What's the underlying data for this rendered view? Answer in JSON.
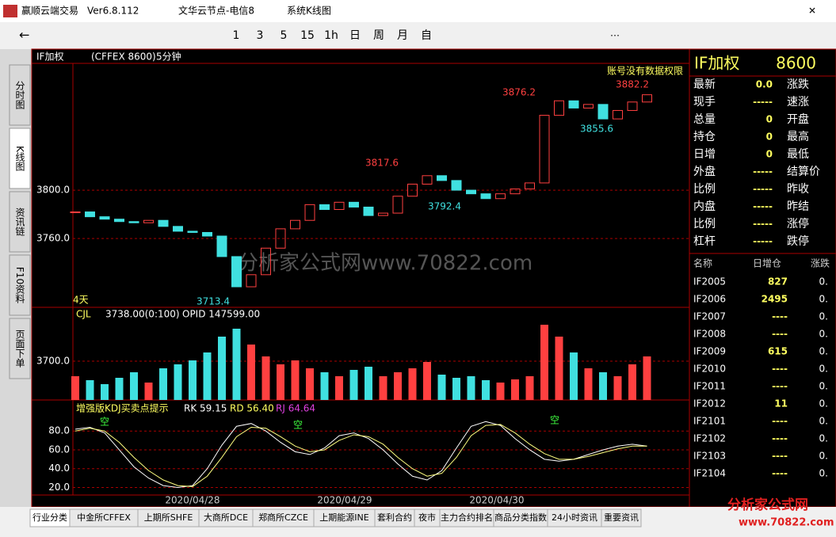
{
  "window": {
    "app": "赢顺云端交易",
    "version": "Ver6.8.112",
    "node": "文华云节点-电信8",
    "view": "系统K线图"
  },
  "toolbar": [
    "1",
    "3",
    "5",
    "15",
    "1h",
    "日",
    "周",
    "月",
    "自"
  ],
  "left_tabs": [
    "分时图",
    "K线图",
    "资讯链",
    "F10资料",
    "页面下单"
  ],
  "chart_header": {
    "symbol": "IF加权",
    "exchange": "(CFFEX 8600)",
    "period": "5分钟",
    "notice": "账号没有数据权限",
    "days": "4天"
  },
  "chart_data": {
    "type": "candlestick",
    "ylim": [
      3703,
      3905
    ],
    "yticks": [
      {
        "value": 3800,
        "label": "3800.0"
      },
      {
        "value": 3760,
        "label": "3760.0"
      }
    ],
    "watermark": "分析家公式网www.70822.com",
    "annotations": [
      "3876.2",
      "3882.2",
      "3817.6",
      "3855.6",
      "3792.4",
      "3713.4"
    ],
    "x_labels": [
      "2020/04/28",
      "2020/04/29",
      "2020/04/30"
    ],
    "closes": [
      3782,
      3778,
      3776,
      3774,
      3773,
      3775,
      3770,
      3766,
      3765,
      3762,
      3745,
      3720,
      3730,
      3752,
      3768,
      3775,
      3788,
      3784,
      3790,
      3786,
      3779,
      3781,
      3795,
      3805,
      3812,
      3808,
      3800,
      3797,
      3793,
      3797,
      3801,
      3806,
      3862,
      3874,
      3868,
      3871,
      3859,
      3866,
      3873,
      3879
    ],
    "up_color": "#ff4040",
    "down_color": "#40e0e0",
    "volume": {
      "label": "CJL",
      "value": "3738.00(0:100)",
      "opid": "OPID 147599.00",
      "ytick": "3700.0",
      "ylim": [
        0,
        100
      ],
      "values": [
        30,
        25,
        20,
        28,
        35,
        22,
        40,
        45,
        50,
        60,
        80,
        90,
        70,
        55,
        45,
        50,
        40,
        35,
        30,
        38,
        42,
        30,
        35,
        40,
        48,
        32,
        28,
        30,
        25,
        22,
        26,
        30,
        95,
        80,
        60,
        40,
        35,
        30,
        45,
        55
      ]
    },
    "kdj": {
      "title": "增强版KDJ买卖点提示",
      "rk": "RK 59.15",
      "rd": "RD 56.40",
      "rj": "RJ 64.64",
      "signal": "空",
      "ylim": [
        12,
        113
      ],
      "yticks": [
        {
          "value": 80,
          "label": "80.0"
        },
        {
          "value": 60,
          "label": "60.0"
        },
        {
          "value": 40,
          "label": "40.0"
        },
        {
          "value": 20,
          "label": "20.0"
        }
      ],
      "series": [
        {
          "name": "RK",
          "color": "#ffffff",
          "values": [
            82,
            84,
            78,
            60,
            42,
            30,
            22,
            20,
            22,
            40,
            65,
            85,
            88,
            80,
            68,
            58,
            55,
            62,
            75,
            78,
            72,
            60,
            45,
            32,
            28,
            38,
            62,
            85,
            90,
            86,
            72,
            60,
            50,
            48,
            50,
            55,
            60,
            64,
            66,
            64
          ]
        },
        {
          "name": "RD",
          "color": "#ffff80",
          "values": [
            80,
            83,
            80,
            68,
            52,
            38,
            28,
            22,
            21,
            32,
            52,
            74,
            84,
            83,
            74,
            64,
            58,
            60,
            70,
            76,
            74,
            66,
            52,
            40,
            32,
            35,
            52,
            75,
            86,
            87,
            78,
            66,
            56,
            50,
            50,
            53,
            57,
            61,
            64,
            64
          ]
        }
      ]
    }
  },
  "quote": {
    "symbol": "IF加权",
    "code": "8600",
    "rows": [
      [
        "最新",
        "0.0",
        "涨跌"
      ],
      [
        "现手",
        "-----",
        "速涨"
      ],
      [
        "总量",
        "0",
        "开盘"
      ],
      [
        "持仓",
        "0",
        "最高"
      ],
      [
        "日增",
        "0",
        "最低"
      ],
      [
        "外盘",
        "-----",
        "结算价"
      ],
      [
        "比例",
        "-----",
        "昨收"
      ],
      [
        "内盘",
        "-----",
        "昨结"
      ],
      [
        "比例",
        "-----",
        "涨停"
      ],
      [
        "杠杆",
        "-----",
        "跌停"
      ]
    ]
  },
  "contracts": {
    "header": [
      "名称",
      "日增仓",
      "涨跌"
    ],
    "rows": [
      [
        "IF2005",
        "827",
        "0."
      ],
      [
        "IF2006",
        "2495",
        "0."
      ],
      [
        "IF2007",
        "----",
        "0."
      ],
      [
        "IF2008",
        "----",
        "0."
      ],
      [
        "IF2009",
        "615",
        "0."
      ],
      [
        "IF2010",
        "----",
        "0."
      ],
      [
        "IF2011",
        "----",
        "0."
      ],
      [
        "IF2012",
        "11",
        "0."
      ],
      [
        "IF2101",
        "----",
        "0."
      ],
      [
        "IF2102",
        "----",
        "0."
      ],
      [
        "IF2103",
        "----",
        "0."
      ],
      [
        "IF2104",
        "----",
        "0."
      ]
    ]
  },
  "bottom_tabs": [
    "行业分类",
    "中金所CFFEX",
    "上期所SHFE",
    "大商所DCE",
    "郑商所CZCE",
    "上期能源INE",
    "套利合约",
    "夜市",
    "主力合约排名",
    "商品分类指数",
    "24小时资讯",
    "重要资讯"
  ],
  "logo": {
    "name": "分析家公式网",
    "url": "www.70822.com"
  }
}
